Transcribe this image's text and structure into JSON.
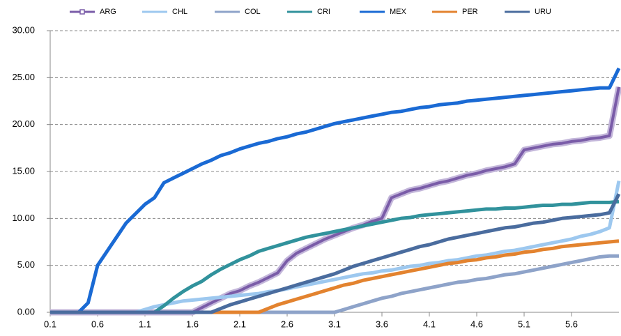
{
  "chart_data": {
    "type": "line",
    "x": [
      0.1,
      0.2,
      0.3,
      0.4,
      0.5,
      0.6,
      0.7,
      0.8,
      0.9,
      1.0,
      1.1,
      1.2,
      1.3,
      1.4,
      1.5,
      1.6,
      1.7,
      1.8,
      1.9,
      2.0,
      2.1,
      2.2,
      2.3,
      2.4,
      2.5,
      2.6,
      2.7,
      2.8,
      2.9,
      3.0,
      3.1,
      3.2,
      3.3,
      3.4,
      3.5,
      3.6,
      3.7,
      3.8,
      3.9,
      4.0,
      4.1,
      4.2,
      4.3,
      4.4,
      4.5,
      4.6,
      4.7,
      4.8,
      4.9,
      5.0,
      5.1,
      5.2,
      5.3,
      5.4,
      5.5,
      5.6,
      5.7,
      5.8,
      5.9,
      6.0,
      6.1
    ],
    "xlim": [
      0.1,
      6.1
    ],
    "xticks": [
      0.1,
      0.6,
      1.1,
      1.6,
      2.1,
      2.6,
      3.1,
      3.6,
      4.1,
      4.6,
      5.1,
      5.6
    ],
    "ylim": [
      0,
      30
    ],
    "yticks": [
      {
        "value": 0,
        "label": "0.00"
      },
      {
        "value": 5,
        "label": "5.00"
      },
      {
        "value": 10,
        "label": "10.00"
      },
      {
        "value": 15,
        "label": "15.00"
      },
      {
        "value": 20,
        "label": "20.00"
      },
      {
        "value": 25,
        "label": "25.00"
      },
      {
        "value": 30,
        "label": "30.00"
      }
    ],
    "grid": true,
    "legend": "top",
    "series": [
      {
        "name": "ARG",
        "color": "#7a5ca8",
        "values": [
          0,
          0,
          0,
          0,
          0,
          0,
          0,
          0,
          0,
          0,
          0,
          0,
          0,
          0,
          0,
          0,
          0.5,
          1,
          1.5,
          2,
          2.3,
          2.8,
          3.2,
          3.7,
          4.2,
          5.5,
          6.3,
          6.8,
          7.3,
          7.8,
          8.2,
          8.6,
          9,
          9.3,
          9.7,
          10,
          12.2,
          12.6,
          13,
          13.2,
          13.5,
          13.8,
          14,
          14.3,
          14.6,
          14.8,
          15.1,
          15.3,
          15.5,
          15.8,
          17.3,
          17.5,
          17.7,
          17.9,
          18,
          18.2,
          18.3,
          18.5,
          18.6,
          18.8,
          24
        ]
      },
      {
        "name": "CHL",
        "color": "#9dc8ef",
        "values": [
          0,
          0,
          0,
          0,
          0,
          0,
          0,
          0,
          0,
          0,
          0.3,
          0.6,
          0.8,
          1,
          1.2,
          1.3,
          1.4,
          1.5,
          1.6,
          1.7,
          1.8,
          1.9,
          2,
          2.2,
          2.3,
          2.5,
          2.7,
          2.9,
          3.1,
          3.3,
          3.5,
          3.7,
          3.9,
          4.1,
          4.2,
          4.4,
          4.5,
          4.7,
          4.9,
          5,
          5.2,
          5.3,
          5.5,
          5.6,
          5.8,
          6,
          6.1,
          6.3,
          6.5,
          6.6,
          6.8,
          7,
          7.2,
          7.4,
          7.6,
          7.8,
          8.1,
          8.3,
          8.6,
          9,
          14
        ]
      },
      {
        "name": "COL",
        "color": "#8ea3c9",
        "values": [
          0,
          0,
          0,
          0,
          0,
          0,
          0,
          0,
          0,
          0,
          0,
          0,
          0,
          0,
          0,
          0,
          0,
          0,
          0,
          0,
          0,
          0,
          0,
          0,
          0,
          0,
          0,
          0,
          0,
          0,
          0,
          0.3,
          0.6,
          0.9,
          1.2,
          1.5,
          1.7,
          2,
          2.2,
          2.4,
          2.6,
          2.8,
          3,
          3.2,
          3.3,
          3.5,
          3.6,
          3.8,
          4,
          4.1,
          4.3,
          4.5,
          4.7,
          4.9,
          5.1,
          5.3,
          5.5,
          5.7,
          5.9,
          6,
          6
        ]
      },
      {
        "name": "CRI",
        "color": "#31929c",
        "values": [
          0,
          0,
          0,
          0,
          0,
          0,
          0,
          0,
          0,
          0,
          0,
          0,
          0.7,
          1.5,
          2.2,
          2.8,
          3.3,
          4,
          4.6,
          5.1,
          5.6,
          6,
          6.5,
          6.8,
          7.1,
          7.4,
          7.7,
          8,
          8.2,
          8.4,
          8.6,
          8.8,
          9,
          9.2,
          9.4,
          9.6,
          9.8,
          10,
          10.1,
          10.3,
          10.4,
          10.5,
          10.6,
          10.7,
          10.8,
          10.9,
          11,
          11,
          11.1,
          11.1,
          11.2,
          11.3,
          11.4,
          11.4,
          11.5,
          11.5,
          11.6,
          11.7,
          11.7,
          11.7,
          11.8
        ]
      },
      {
        "name": "MEX",
        "color": "#1a6ad4",
        "values": [
          0,
          0,
          0,
          0,
          1,
          5,
          6.5,
          8,
          9.5,
          10.5,
          11.5,
          12.2,
          13.8,
          14.3,
          14.8,
          15.3,
          15.8,
          16.2,
          16.7,
          17,
          17.4,
          17.7,
          18,
          18.2,
          18.5,
          18.7,
          19,
          19.2,
          19.5,
          19.8,
          20.1,
          20.3,
          20.5,
          20.7,
          20.9,
          21.1,
          21.3,
          21.4,
          21.6,
          21.8,
          21.9,
          22.1,
          22.2,
          22.3,
          22.5,
          22.6,
          22.7,
          22.8,
          22.9,
          23,
          23.1,
          23.2,
          23.3,
          23.4,
          23.5,
          23.6,
          23.7,
          23.8,
          23.9,
          23.9,
          26
        ]
      },
      {
        "name": "PER",
        "color": "#e3832f",
        "values": [
          0,
          0,
          0,
          0,
          0,
          0,
          0,
          0,
          0,
          0,
          0,
          0,
          0,
          0,
          0,
          0,
          0,
          0,
          0,
          0,
          0,
          0,
          0,
          0.4,
          0.8,
          1.1,
          1.4,
          1.7,
          2,
          2.3,
          2.6,
          2.9,
          3.1,
          3.4,
          3.6,
          3.8,
          4,
          4.2,
          4.4,
          4.6,
          4.8,
          5,
          5.2,
          5.3,
          5.5,
          5.6,
          5.8,
          5.9,
          6.1,
          6.2,
          6.4,
          6.5,
          6.7,
          6.8,
          7,
          7.1,
          7.2,
          7.3,
          7.4,
          7.5,
          7.6
        ]
      },
      {
        "name": "URU",
        "color": "#4a6c9e",
        "values": [
          0,
          0,
          0,
          0,
          0,
          0,
          0,
          0,
          0,
          0,
          0,
          0,
          0,
          0,
          0,
          0,
          0,
          0,
          0.4,
          0.8,
          1.1,
          1.4,
          1.7,
          2,
          2.3,
          2.6,
          2.9,
          3.2,
          3.5,
          3.8,
          4.1,
          4.5,
          4.9,
          5.2,
          5.5,
          5.8,
          6.1,
          6.4,
          6.7,
          7,
          7.2,
          7.5,
          7.8,
          8,
          8.2,
          8.4,
          8.6,
          8.8,
          9,
          9.1,
          9.3,
          9.5,
          9.6,
          9.8,
          10,
          10.1,
          10.2,
          10.3,
          10.4,
          10.6,
          12.6
        ]
      }
    ]
  }
}
